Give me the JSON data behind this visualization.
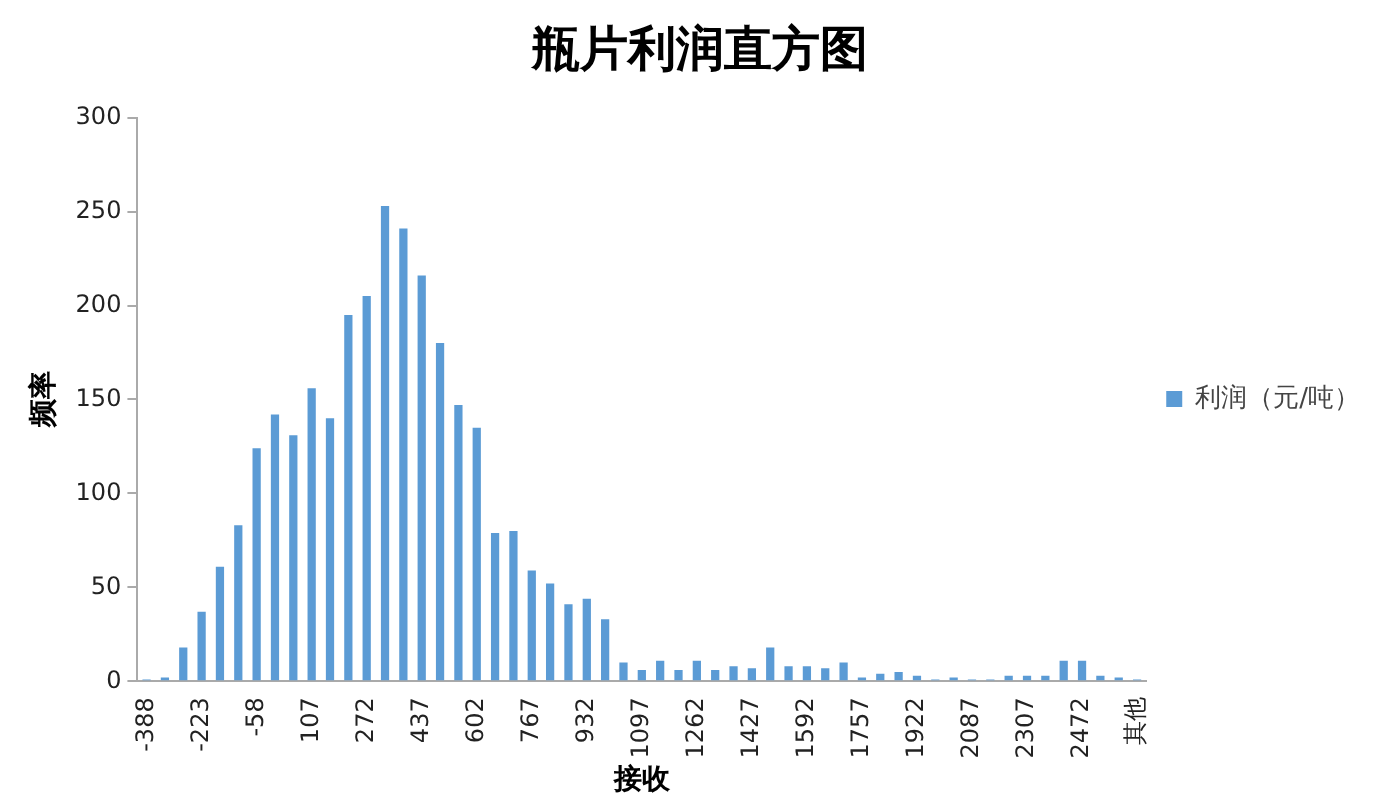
{
  "chart_data": {
    "type": "bar",
    "title": "瓶片利润直方图",
    "xlabel": "接收",
    "ylabel": "频率",
    "categories": [
      "-388",
      null,
      null,
      "-223",
      null,
      null,
      "-58",
      null,
      null,
      "107",
      null,
      null,
      "272",
      null,
      null,
      "437",
      null,
      null,
      "602",
      null,
      null,
      "767",
      null,
      null,
      "932",
      null,
      null,
      "1097",
      null,
      null,
      "1262",
      null,
      null,
      "1427",
      null,
      null,
      "1592",
      null,
      null,
      "1757",
      null,
      null,
      "1922",
      null,
      null,
      "2087",
      null,
      null,
      "2307",
      null,
      null,
      "2472",
      null,
      null,
      "其他"
    ],
    "series": [
      {
        "name": "利润（元/吨）",
        "color": "#5b9bd5",
        "values": [
          1,
          2,
          18,
          37,
          61,
          83,
          124,
          142,
          131,
          156,
          140,
          195,
          205,
          253,
          241,
          216,
          180,
          147,
          135,
          79,
          80,
          59,
          52,
          41,
          44,
          33,
          10,
          6,
          11,
          6,
          11,
          6,
          8,
          7,
          18,
          8,
          8,
          7,
          10,
          2,
          4,
          5,
          3,
          1,
          2,
          1,
          1,
          3,
          3,
          3,
          11,
          11,
          3,
          2,
          1
        ]
      }
    ],
    "ylim": [
      0,
      300
    ],
    "yticks": [
      0,
      50,
      100,
      150,
      200,
      250,
      300
    ],
    "grid": false,
    "legend": "right"
  }
}
